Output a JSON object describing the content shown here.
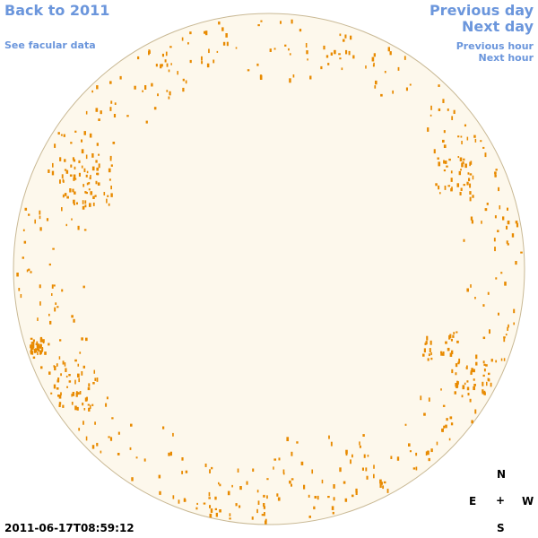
{
  "links": {
    "back": "Back to 2011",
    "facular": "See facular data",
    "previous_day": "Previous day",
    "next_day": "Next day",
    "previous_hour": "Previous hour",
    "next_hour": "Next hour"
  },
  "timestamp": "2011-06-17T08:59:12",
  "compass": {
    "north": "N",
    "east": "E",
    "center": "+",
    "west": "W",
    "south": "S"
  }
}
